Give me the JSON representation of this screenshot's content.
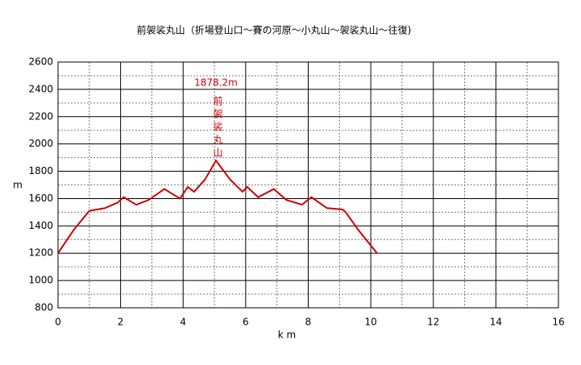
{
  "chart_data": {
    "type": "line",
    "title": "前袈裟丸山（折場登山口～賽の河原～小丸山～袈裟丸山～往復)",
    "x_label": "k m",
    "y_label": "m",
    "x": [
      0,
      0.5,
      1.0,
      1.5,
      1.9,
      2.1,
      2.5,
      2.9,
      3.4,
      3.9,
      4.15,
      4.35,
      4.7,
      5.05,
      5.5,
      5.9,
      6.05,
      6.4,
      6.9,
      7.3,
      7.8,
      8.1,
      8.6,
      9.1,
      9.2,
      9.6,
      10.2
    ],
    "series": [
      {
        "name": null,
        "color": "#cc0000",
        "values": [
          1200,
          1370,
          1510,
          1530,
          1570,
          1610,
          1555,
          1590,
          1670,
          1600,
          1685,
          1650,
          1740,
          1878.2,
          1740,
          1650,
          1685,
          1610,
          1670,
          1590,
          1555,
          1610,
          1530,
          1520,
          1500,
          1370,
          1200
        ]
      }
    ],
    "annotations": [
      {
        "text": "1878.2m"
      },
      {
        "text": "前袈裟丸山"
      }
    ],
    "xlim": [
      0,
      16
    ],
    "xticks": [
      0,
      2,
      4,
      6,
      8,
      10,
      12,
      14,
      16
    ],
    "ylim": [
      800,
      2600
    ],
    "yticks": [
      800,
      1000,
      1200,
      1400,
      1600,
      1800,
      2000,
      2200,
      2400,
      2600
    ],
    "grid": true,
    "minor_grid": true
  }
}
